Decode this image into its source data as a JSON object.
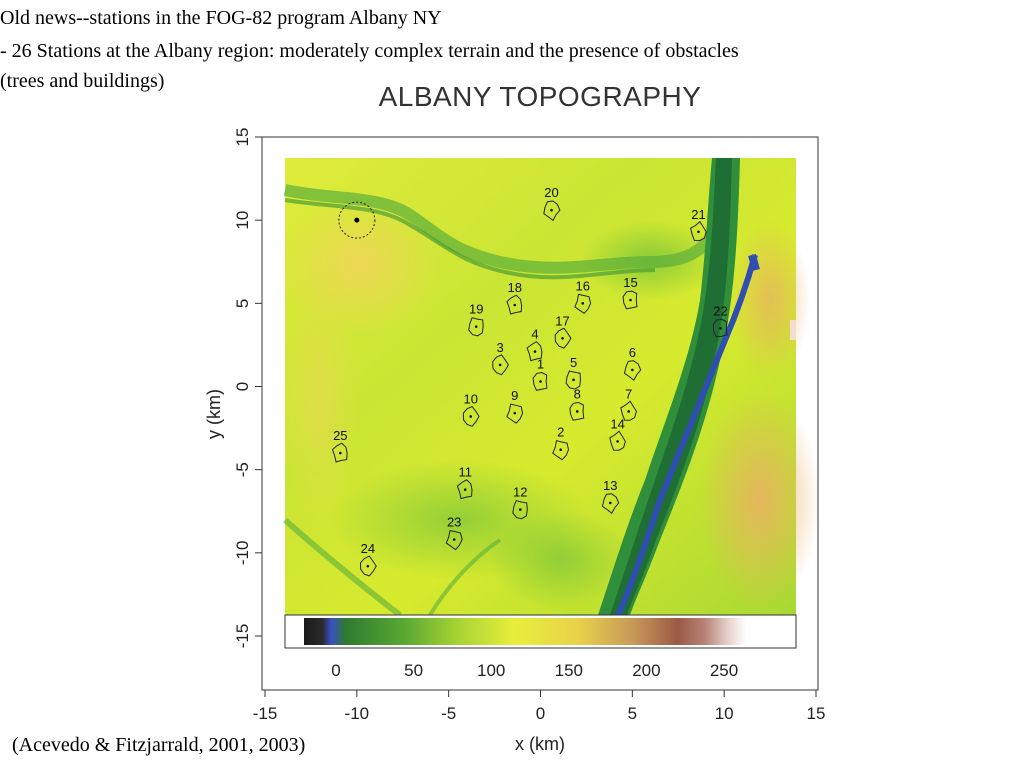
{
  "slide": {
    "title": "Old news--stations in the FOG-82 program Albany NY",
    "subtitle": "- 26 Stations at the Albany region: moderately complex terrain and the presence of obstacles (trees and buildings)",
    "citation": "(Acevedo & Fitzjarrald, 2001, 2003)"
  },
  "map": {
    "title": "ALBANY TOPOGRAPHY",
    "xlabel": "x (km)",
    "ylabel": "y (km)",
    "xlim": [
      -15,
      15
    ],
    "ylim": [
      -15,
      15
    ],
    "xticks": [
      "-15",
      "-10",
      "-5",
      "0",
      "5",
      "10",
      "15"
    ],
    "yticks": [
      "15",
      "10",
      "5",
      "0",
      "-5",
      "-10",
      "-15"
    ],
    "colorbar_ticks": [
      "0",
      "50",
      "100",
      "150",
      "200",
      "250"
    ],
    "colors": {
      "lowland": "#5cb83a",
      "midland": "#d6ea30",
      "highland": "#e6c15a",
      "river": "#2e4fb0"
    },
    "stations": [
      {
        "id": "1",
        "x": 0.0,
        "y": 0.3
      },
      {
        "id": "2",
        "x": 1.1,
        "y": -3.8
      },
      {
        "id": "3",
        "x": -2.2,
        "y": 1.3
      },
      {
        "id": "4",
        "x": -0.3,
        "y": 2.1
      },
      {
        "id": "5",
        "x": 1.8,
        "y": 0.4
      },
      {
        "id": "6",
        "x": 5.0,
        "y": 1.0
      },
      {
        "id": "7",
        "x": 4.8,
        "y": -1.5
      },
      {
        "id": "8",
        "x": 2.0,
        "y": -1.5
      },
      {
        "id": "9",
        "x": -1.4,
        "y": -1.6
      },
      {
        "id": "10",
        "x": -3.8,
        "y": -1.8
      },
      {
        "id": "11",
        "x": -4.1,
        "y": -6.2
      },
      {
        "id": "12",
        "x": -1.1,
        "y": -7.4
      },
      {
        "id": "13",
        "x": 3.8,
        "y": -7.0
      },
      {
        "id": "14",
        "x": 4.2,
        "y": -3.3
      },
      {
        "id": "15",
        "x": 4.9,
        "y": 5.2
      },
      {
        "id": "16",
        "x": 2.3,
        "y": 5.0
      },
      {
        "id": "17",
        "x": 1.2,
        "y": 2.9
      },
      {
        "id": "18",
        "x": -1.4,
        "y": 4.9
      },
      {
        "id": "19",
        "x": -3.5,
        "y": 3.6
      },
      {
        "id": "20",
        "x": 0.6,
        "y": 10.6
      },
      {
        "id": "21",
        "x": 8.6,
        "y": 9.3
      },
      {
        "id": "22",
        "x": 9.8,
        "y": 3.5
      },
      {
        "id": "23",
        "x": -4.7,
        "y": -9.2
      },
      {
        "id": "24",
        "x": -9.4,
        "y": -10.8
      },
      {
        "id": "25",
        "x": -10.9,
        "y": -4.0
      }
    ],
    "reference_site": {
      "x": -10.0,
      "y": 10.0
    }
  }
}
